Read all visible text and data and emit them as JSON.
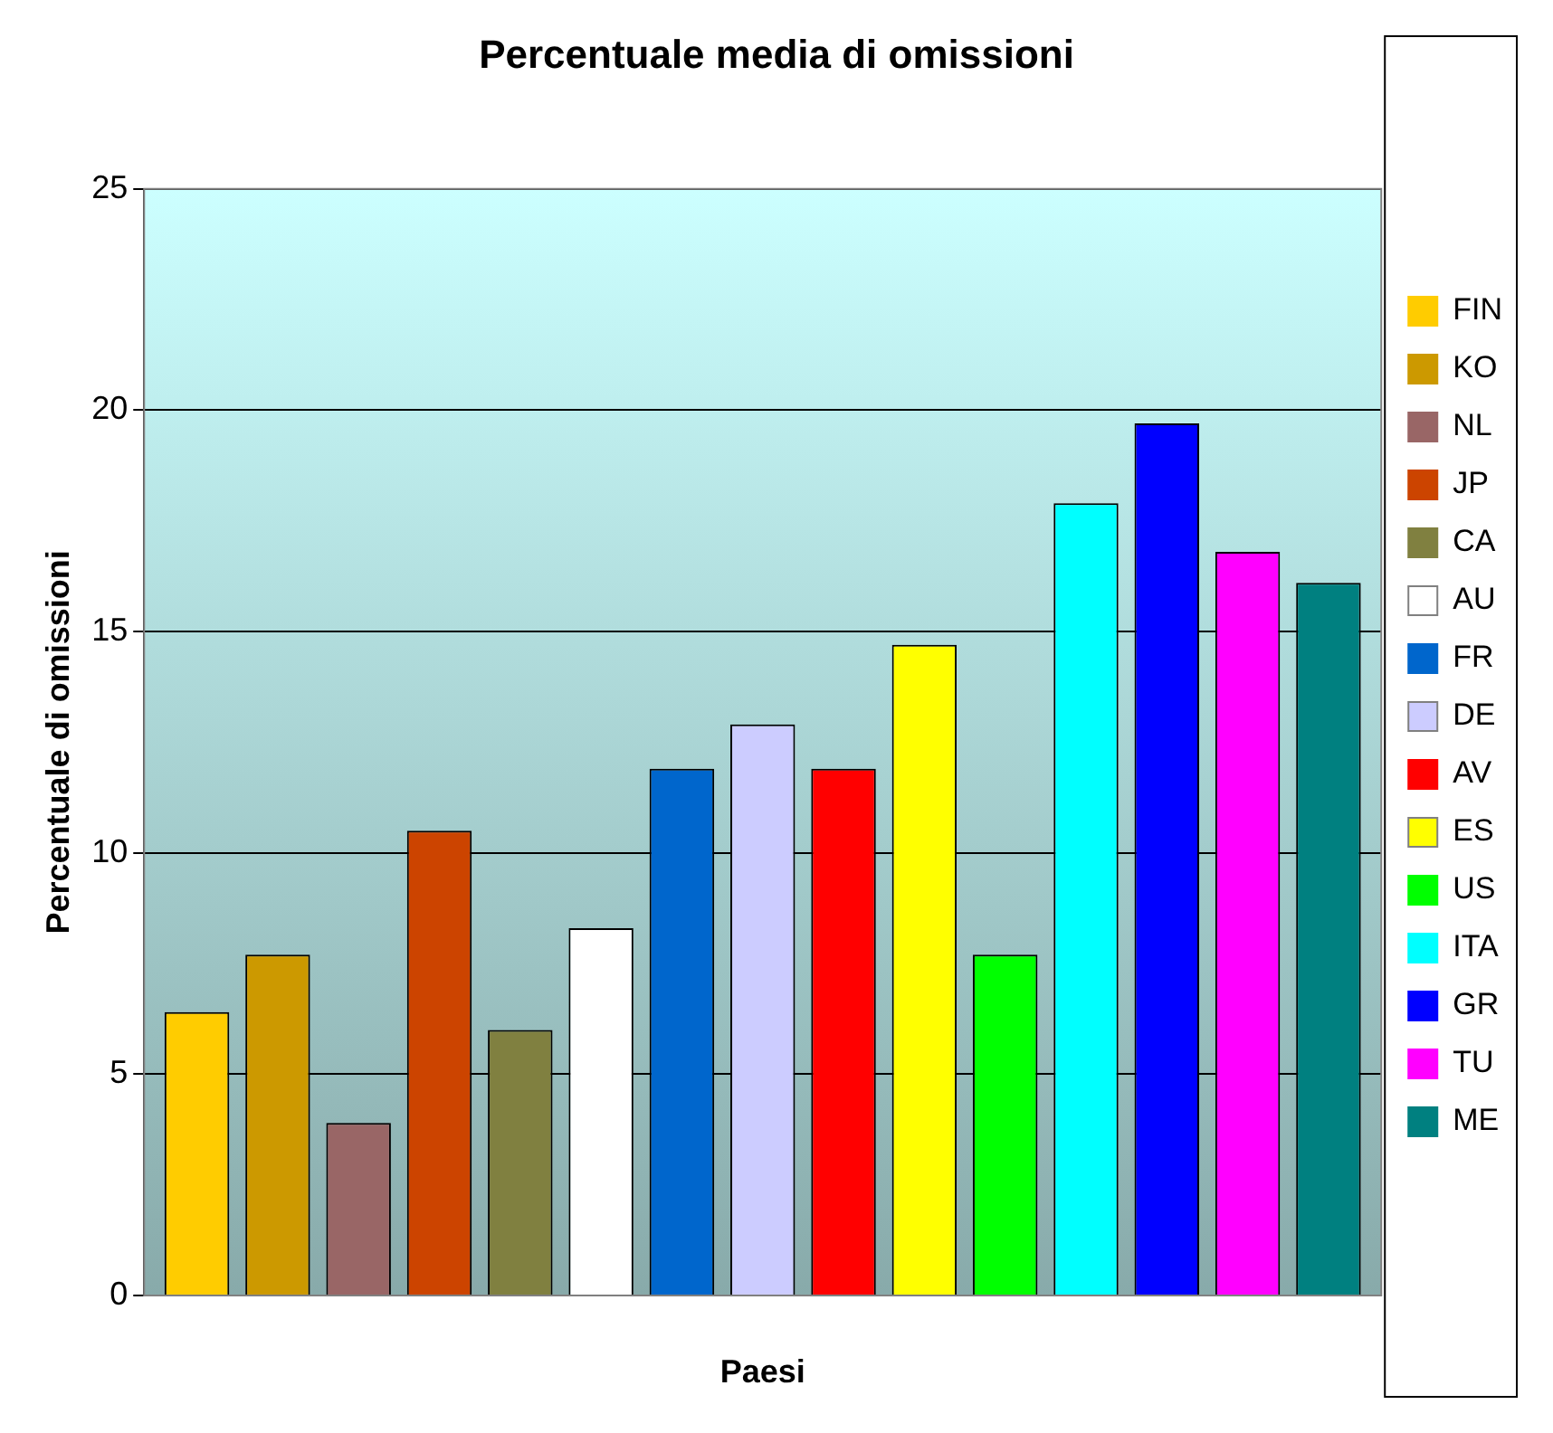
{
  "chart_data": {
    "type": "bar",
    "title": "Percentuale media di omissioni",
    "xlabel": "Paesi",
    "ylabel": "Percentuale di omissioni",
    "categories": [
      null
    ],
    "series": [
      {
        "name": "FIN",
        "color": "#ffcc00",
        "values": [
          6.4
        ]
      },
      {
        "name": "KO",
        "color": "#cc9900",
        "values": [
          7.7
        ]
      },
      {
        "name": "NL",
        "color": "#996666",
        "values": [
          3.9
        ]
      },
      {
        "name": "JP",
        "color": "#cc4400",
        "values": [
          10.5
        ]
      },
      {
        "name": "CA",
        "color": "#808040",
        "values": [
          6.0
        ]
      },
      {
        "name": "AU",
        "color": "#ffffff",
        "values": [
          8.3
        ]
      },
      {
        "name": "FR",
        "color": "#0066cc",
        "values": [
          11.9
        ]
      },
      {
        "name": "DE",
        "color": "#ccccff",
        "values": [
          12.9
        ]
      },
      {
        "name": "AV",
        "color": "#ff0000",
        "values": [
          11.9
        ]
      },
      {
        "name": "ES",
        "color": "#ffff00",
        "values": [
          14.7
        ]
      },
      {
        "name": "US",
        "color": "#00ff00",
        "values": [
          7.7
        ]
      },
      {
        "name": "ITA",
        "color": "#00ffff",
        "values": [
          17.9
        ]
      },
      {
        "name": "GR",
        "color": "#0000ff",
        "values": [
          19.7
        ]
      },
      {
        "name": "TU",
        "color": "#ff00ff",
        "values": [
          16.8
        ]
      },
      {
        "name": "ME",
        "color": "#008080",
        "values": [
          16.1
        ]
      }
    ],
    "ylim": [
      0,
      25
    ],
    "yticks": [
      0,
      5,
      10,
      15,
      20,
      25
    ],
    "grid": "y",
    "legend": "right"
  }
}
